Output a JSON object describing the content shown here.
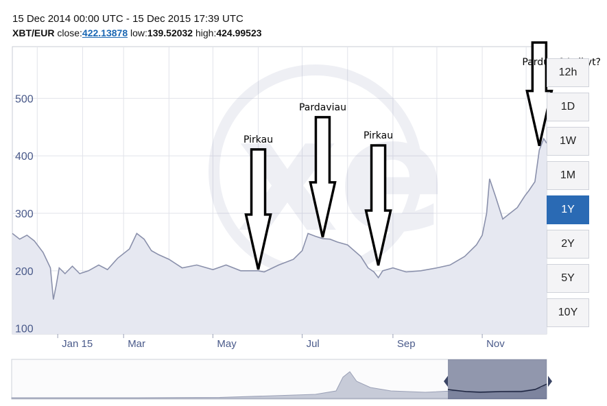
{
  "header": {
    "date_range": "15 Dec 2014 00:00 UTC - 15 Dec 2015 17:39 UTC",
    "pair": "XBT/EUR",
    "close_label": "close:",
    "close_value": "422.13878",
    "low_label": "low:",
    "low_value": "139.52032",
    "high_label": "high:",
    "high_value": "424.99523"
  },
  "range_buttons": [
    {
      "label": "12h",
      "active": false
    },
    {
      "label": "1D",
      "active": false
    },
    {
      "label": "1W",
      "active": false
    },
    {
      "label": "1M",
      "active": false
    },
    {
      "label": "1Y",
      "active": true
    },
    {
      "label": "2Y",
      "active": false
    },
    {
      "label": "5Y",
      "active": false
    },
    {
      "label": "10Y",
      "active": false
    }
  ],
  "annotations": [
    {
      "text": "Pirkau",
      "x": "2015-06-01",
      "y": 200
    },
    {
      "text": "Pardaviau",
      "x": "2015-07-15",
      "y": 256
    },
    {
      "text": "Pirkau",
      "x": "2015-08-22",
      "y": 207
    },
    {
      "text": "Parduot? Laikyt?",
      "x": "2015-12-10",
      "y": 415
    }
  ],
  "colors": {
    "line": "#8a90ab",
    "fill": "#e6e8f1",
    "grid": "#e1e3ea",
    "axis_text": "#4a5a8a",
    "accent": "#2a6ab4",
    "annotation": "#000000"
  },
  "chart_data": {
    "type": "area",
    "title": "",
    "xlabel": "",
    "ylabel": "",
    "ylim": [
      90,
      590
    ],
    "xlim": [
      "2014-12-15",
      "2015-12-15"
    ],
    "yticks": [
      100,
      200,
      300,
      400,
      500
    ],
    "xticks": [
      {
        "date": "2015-01-15",
        "label": "Jan 15"
      },
      {
        "date": "2015-03-01",
        "label": "Mar"
      },
      {
        "date": "2015-05-01",
        "label": "May"
      },
      {
        "date": "2015-07-01",
        "label": "Jul"
      },
      {
        "date": "2015-09-01",
        "label": "Sep"
      },
      {
        "date": "2015-11-01",
        "label": "Nov"
      }
    ],
    "grid": true,
    "legend": "none",
    "series": [
      {
        "x": [
          "2014-12-15",
          "2014-12-20",
          "2014-12-25",
          "2014-12-30",
          "2015-01-05",
          "2015-01-10",
          "2015-01-12",
          "2015-01-14",
          "2015-01-16",
          "2015-01-20",
          "2015-01-25",
          "2015-01-30",
          "2015-02-05",
          "2015-02-12",
          "2015-02-18",
          "2015-02-25",
          "2015-03-05",
          "2015-03-10",
          "2015-03-15",
          "2015-03-20",
          "2015-03-25",
          "2015-04-01",
          "2015-04-10",
          "2015-04-20",
          "2015-05-01",
          "2015-05-10",
          "2015-05-20",
          "2015-06-01",
          "2015-06-05",
          "2015-06-15",
          "2015-06-25",
          "2015-07-01",
          "2015-07-05",
          "2015-07-10",
          "2015-07-15",
          "2015-07-20",
          "2015-07-25",
          "2015-08-01",
          "2015-08-10",
          "2015-08-15",
          "2015-08-19",
          "2015-08-22",
          "2015-08-25",
          "2015-09-01",
          "2015-09-10",
          "2015-09-20",
          "2015-10-01",
          "2015-10-10",
          "2015-10-20",
          "2015-10-28",
          "2015-11-01",
          "2015-11-04",
          "2015-11-06",
          "2015-11-10",
          "2015-11-15",
          "2015-11-20",
          "2015-11-25",
          "2015-11-30",
          "2015-12-03",
          "2015-12-07",
          "2015-12-10",
          "2015-12-13",
          "2015-12-15"
        ],
        "values": [
          265,
          255,
          262,
          252,
          232,
          205,
          150,
          175,
          205,
          195,
          208,
          195,
          200,
          210,
          202,
          222,
          238,
          265,
          255,
          235,
          228,
          220,
          205,
          210,
          202,
          210,
          200,
          200,
          198,
          210,
          220,
          235,
          265,
          260,
          256,
          255,
          250,
          245,
          225,
          205,
          198,
          188,
          200,
          205,
          198,
          200,
          205,
          210,
          225,
          245,
          262,
          300,
          360,
          330,
          290,
          300,
          310,
          330,
          340,
          355,
          410,
          430,
          422
        ]
      }
    ]
  }
}
